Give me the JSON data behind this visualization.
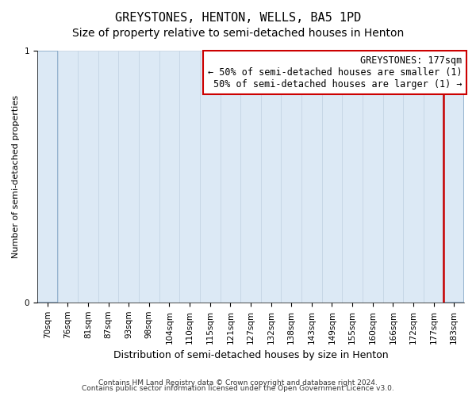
{
  "title": "GREYSTONES, HENTON, WELLS, BA5 1PD",
  "subtitle": "Size of property relative to semi-detached houses in Henton",
  "xlabel": "Distribution of semi-detached houses by size in Henton",
  "ylabel": "Number of semi-detached properties",
  "footnote1": "Contains HM Land Registry data © Crown copyright and database right 2024.",
  "footnote2": "Contains public sector information licensed under the Open Government Licence v3.0.",
  "bins": [
    "70sqm",
    "76sqm",
    "81sqm",
    "87sqm",
    "93sqm",
    "98sqm",
    "104sqm",
    "110sqm",
    "115sqm",
    "121sqm",
    "127sqm",
    "132sqm",
    "138sqm",
    "143sqm",
    "149sqm",
    "155sqm",
    "160sqm",
    "166sqm",
    "172sqm",
    "177sqm",
    "183sqm"
  ],
  "values": [
    1,
    1,
    1,
    1,
    1,
    1,
    1,
    1,
    1,
    1,
    1,
    1,
    1,
    1,
    1,
    1,
    1,
    1,
    1,
    1,
    1
  ],
  "bar_color": "#dce9f5",
  "bar_edge_color": "#c0d0e0",
  "marker_value_index": 19,
  "marker_color": "#cc0000",
  "marker_label": "GREYSTONES: 177sqm",
  "annotation_line1": "← 50% of semi-detached houses are smaller (1)",
  "annotation_line2": "50% of semi-detached houses are larger (1) →",
  "annotation_box_color": "#cc0000",
  "ylim": [
    0,
    1
  ],
  "yticks": [
    0,
    1
  ],
  "background_color": "#ffffff",
  "title_fontsize": 11,
  "subtitle_fontsize": 10,
  "xlabel_fontsize": 9,
  "ylabel_fontsize": 8,
  "tick_fontsize": 7.5,
  "annotation_fontsize": 8.5,
  "footnote_fontsize": 6.5
}
